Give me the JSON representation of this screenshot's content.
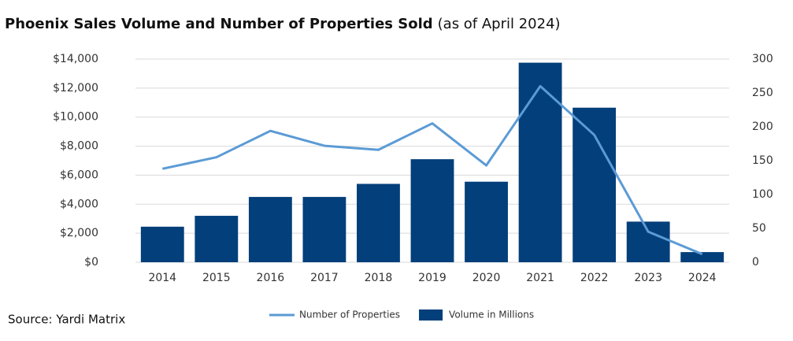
{
  "chart_data": {
    "type": "bar",
    "title": "Phoenix Sales Volume and Number of Properties Sold",
    "subtitle": "(as of April 2024)",
    "source": "Source: Yardi Matrix",
    "categories": [
      "2014",
      "2015",
      "2016",
      "2017",
      "2018",
      "2019",
      "2020",
      "2021",
      "2022",
      "2023",
      "2024"
    ],
    "series": [
      {
        "name": "Volume in Millions",
        "color": "#033f7a",
        "type": "bar",
        "values": [
          2450,
          3200,
          4500,
          4500,
          5400,
          7100,
          5550,
          13750,
          10650,
          2800,
          700
        ]
      },
      {
        "name": "Number of Properties",
        "color": "#5b9bd5",
        "type": "line",
        "axis": "y2",
        "values": [
          138,
          155,
          194,
          172,
          166,
          205,
          143,
          260,
          188,
          45,
          12
        ]
      }
    ],
    "ylim": [
      0,
      14000
    ],
    "yticks": [
      {
        "value": 0,
        "label": "$0"
      },
      {
        "value": 2000,
        "label": "$2,000"
      },
      {
        "value": 4000,
        "label": "$4,000"
      },
      {
        "value": 6000,
        "label": "$6,000"
      },
      {
        "value": 8000,
        "label": "$8,000"
      },
      {
        "value": 10000,
        "label": "$10,000"
      },
      {
        "value": 12000,
        "label": "$12,000"
      },
      {
        "value": 14000,
        "label": "$14,000"
      }
    ],
    "y2lim": [
      0,
      300
    ],
    "y2ticks": [
      0,
      50,
      100,
      150,
      200,
      250,
      300
    ],
    "grid": true,
    "legend": "bottom"
  }
}
